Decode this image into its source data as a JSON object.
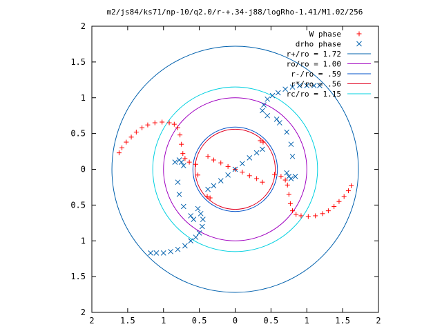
{
  "chart_data": {
    "type": "scatter",
    "title": "m2/js84/ks71/np-10/q2.0/r-+.34-j88/logRho-1.41/M1.02/256",
    "xlabel": "",
    "ylabel": "",
    "xlim": [
      -2,
      2
    ],
    "ylim": [
      -2,
      2
    ],
    "x_ticks": [
      -2,
      -1.5,
      -1,
      -0.5,
      0,
      0.5,
      1,
      1.5,
      2
    ],
    "y_ticks": [
      -2,
      -1.5,
      -1,
      -0.5,
      0,
      0.5,
      1,
      1.5,
      2
    ],
    "x_tick_labels": [
      "2",
      "1.5",
      "1",
      "0.5",
      "0",
      "0.5",
      "1",
      "1.5",
      "2"
    ],
    "y_tick_labels": [
      "2",
      "1.5",
      "1",
      "0.5",
      "0",
      "0.5",
      "1",
      "1.5",
      "2"
    ],
    "grid": false,
    "legend_position": "top-right",
    "series": [
      {
        "name": "W phase",
        "marker": "plus",
        "color": "#ff0000",
        "points": [
          [
            -1.62,
            0.23
          ],
          [
            -1.58,
            0.3
          ],
          [
            -1.52,
            0.38
          ],
          [
            -1.45,
            0.45
          ],
          [
            -1.38,
            0.52
          ],
          [
            -1.3,
            0.58
          ],
          [
            -1.22,
            0.62
          ],
          [
            -1.12,
            0.65
          ],
          [
            -1.02,
            0.66
          ],
          [
            -0.92,
            0.65
          ],
          [
            -0.85,
            0.63
          ],
          [
            -0.8,
            0.58
          ],
          [
            -0.77,
            0.48
          ],
          [
            -0.75,
            0.35
          ],
          [
            -0.73,
            0.22
          ],
          [
            -0.7,
            0.15
          ],
          [
            -0.64,
            0.1
          ],
          [
            -0.55,
            0.07
          ],
          [
            -0.38,
            0.18
          ],
          [
            -0.3,
            0.13
          ],
          [
            -0.2,
            0.09
          ],
          [
            -0.1,
            0.04
          ],
          [
            0.0,
            0.0
          ],
          [
            0.1,
            -0.04
          ],
          [
            0.2,
            -0.09
          ],
          [
            0.3,
            -0.13
          ],
          [
            0.38,
            -0.18
          ],
          [
            0.55,
            -0.07
          ],
          [
            0.64,
            -0.1
          ],
          [
            0.7,
            -0.15
          ],
          [
            0.73,
            -0.22
          ],
          [
            0.75,
            -0.35
          ],
          [
            0.77,
            -0.48
          ],
          [
            0.8,
            -0.58
          ],
          [
            0.85,
            -0.63
          ],
          [
            0.92,
            -0.65
          ],
          [
            1.02,
            -0.66
          ],
          [
            1.12,
            -0.65
          ],
          [
            1.22,
            -0.62
          ],
          [
            1.3,
            -0.58
          ],
          [
            1.38,
            -0.52
          ],
          [
            1.45,
            -0.45
          ],
          [
            1.52,
            -0.38
          ],
          [
            1.58,
            -0.3
          ],
          [
            1.62,
            -0.23
          ],
          [
            -0.52,
            -0.08
          ],
          [
            0.35,
            0.4
          ],
          [
            0.39,
            0.38
          ],
          [
            -0.39,
            -0.38
          ],
          [
            -0.35,
            -0.4
          ]
        ]
      },
      {
        "name": "drho phase",
        "marker": "cross",
        "color": "#0060ad",
        "points": [
          [
            -1.18,
            -1.17
          ],
          [
            -1.1,
            -1.17
          ],
          [
            -1.0,
            -1.17
          ],
          [
            -0.9,
            -1.15
          ],
          [
            -0.8,
            -1.12
          ],
          [
            -0.7,
            -1.07
          ],
          [
            -0.62,
            -1.0
          ],
          [
            -0.55,
            -0.95
          ],
          [
            -0.5,
            -0.89
          ],
          [
            -0.46,
            -0.8
          ],
          [
            -0.45,
            -0.7
          ],
          [
            -0.48,
            -0.62
          ],
          [
            -0.52,
            -0.55
          ],
          [
            -0.38,
            -0.28
          ],
          [
            -0.3,
            -0.23
          ],
          [
            -0.2,
            -0.16
          ],
          [
            -0.1,
            -0.08
          ],
          [
            0.0,
            0.0
          ],
          [
            0.1,
            0.08
          ],
          [
            0.2,
            0.16
          ],
          [
            0.3,
            0.23
          ],
          [
            0.38,
            0.28
          ],
          [
            0.38,
            0.82
          ],
          [
            0.4,
            0.9
          ],
          [
            0.45,
            0.98
          ],
          [
            0.52,
            1.03
          ],
          [
            0.6,
            1.07
          ],
          [
            0.7,
            1.12
          ],
          [
            0.8,
            1.15
          ],
          [
            0.9,
            1.17
          ],
          [
            1.0,
            1.17
          ],
          [
            1.1,
            1.17
          ],
          [
            1.18,
            1.17
          ],
          [
            -0.72,
            0.05
          ],
          [
            -0.75,
            0.1
          ],
          [
            -0.78,
            0.13
          ],
          [
            -0.84,
            0.1
          ],
          [
            -0.8,
            -0.18
          ],
          [
            -0.78,
            -0.35
          ],
          [
            -0.72,
            -0.52
          ],
          [
            -0.62,
            -0.65
          ],
          [
            -0.58,
            -0.7
          ],
          [
            0.58,
            0.7
          ],
          [
            0.62,
            0.65
          ],
          [
            0.72,
            0.52
          ],
          [
            0.78,
            0.35
          ],
          [
            0.8,
            0.18
          ],
          [
            0.84,
            -0.1
          ],
          [
            0.78,
            -0.13
          ],
          [
            0.75,
            -0.1
          ],
          [
            0.72,
            -0.05
          ],
          [
            0.45,
            0.75
          ]
        ]
      }
    ],
    "circles": [
      {
        "name": "r+/ro = 1.72",
        "radius": 1.72,
        "color": "#0060ad"
      },
      {
        "name": "ro/ro = 1.00",
        "radius": 1.0,
        "color": "#a000c0"
      },
      {
        "name": "r-/ro = .59",
        "radius": 0.59,
        "color": "#0050c8"
      },
      {
        "name": "r*/ro = .56",
        "radius": 0.56,
        "color": "#e00020"
      },
      {
        "name": "rc/ro = 1.15",
        "radius": 1.15,
        "color": "#00d0e0"
      }
    ]
  }
}
